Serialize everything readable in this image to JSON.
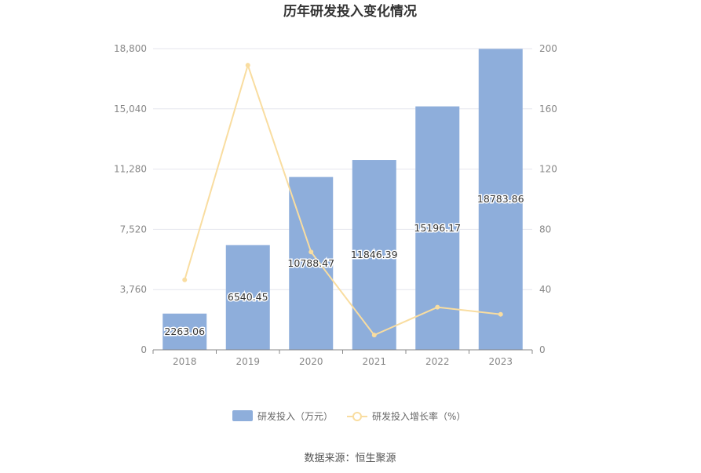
{
  "chart_data": {
    "type": "bar",
    "title": "历年研发投入变化情况",
    "categories": [
      "2018",
      "2019",
      "2020",
      "2021",
      "2022",
      "2023"
    ],
    "series": [
      {
        "name": "研发投入（万元）",
        "type": "bar",
        "axis": "left",
        "color": "#8eaedb",
        "values": [
          2263.06,
          6540.45,
          10788.47,
          11846.39,
          15196.17,
          18783.86
        ],
        "labels": [
          "2263.06",
          "6540.45",
          "10788.47",
          "11846.39",
          "15196.17",
          "18783.86"
        ]
      },
      {
        "name": "研发投入增长率（%）",
        "type": "line",
        "axis": "right",
        "color": "#f9dda0",
        "values": [
          46.5,
          189.0,
          65.0,
          9.8,
          28.3,
          23.6
        ]
      }
    ],
    "y_left": {
      "ylim": [
        0,
        18800
      ],
      "ticks": [
        "0",
        "3,760",
        "7,520",
        "11,280",
        "15,040",
        "18,800"
      ]
    },
    "y_right": {
      "ylim": [
        0,
        200
      ],
      "ticks": [
        "0",
        "40",
        "80",
        "120",
        "160",
        "200"
      ]
    },
    "grid": true,
    "legend": "bottom-center"
  },
  "source_text": "数据来源：恒生聚源"
}
